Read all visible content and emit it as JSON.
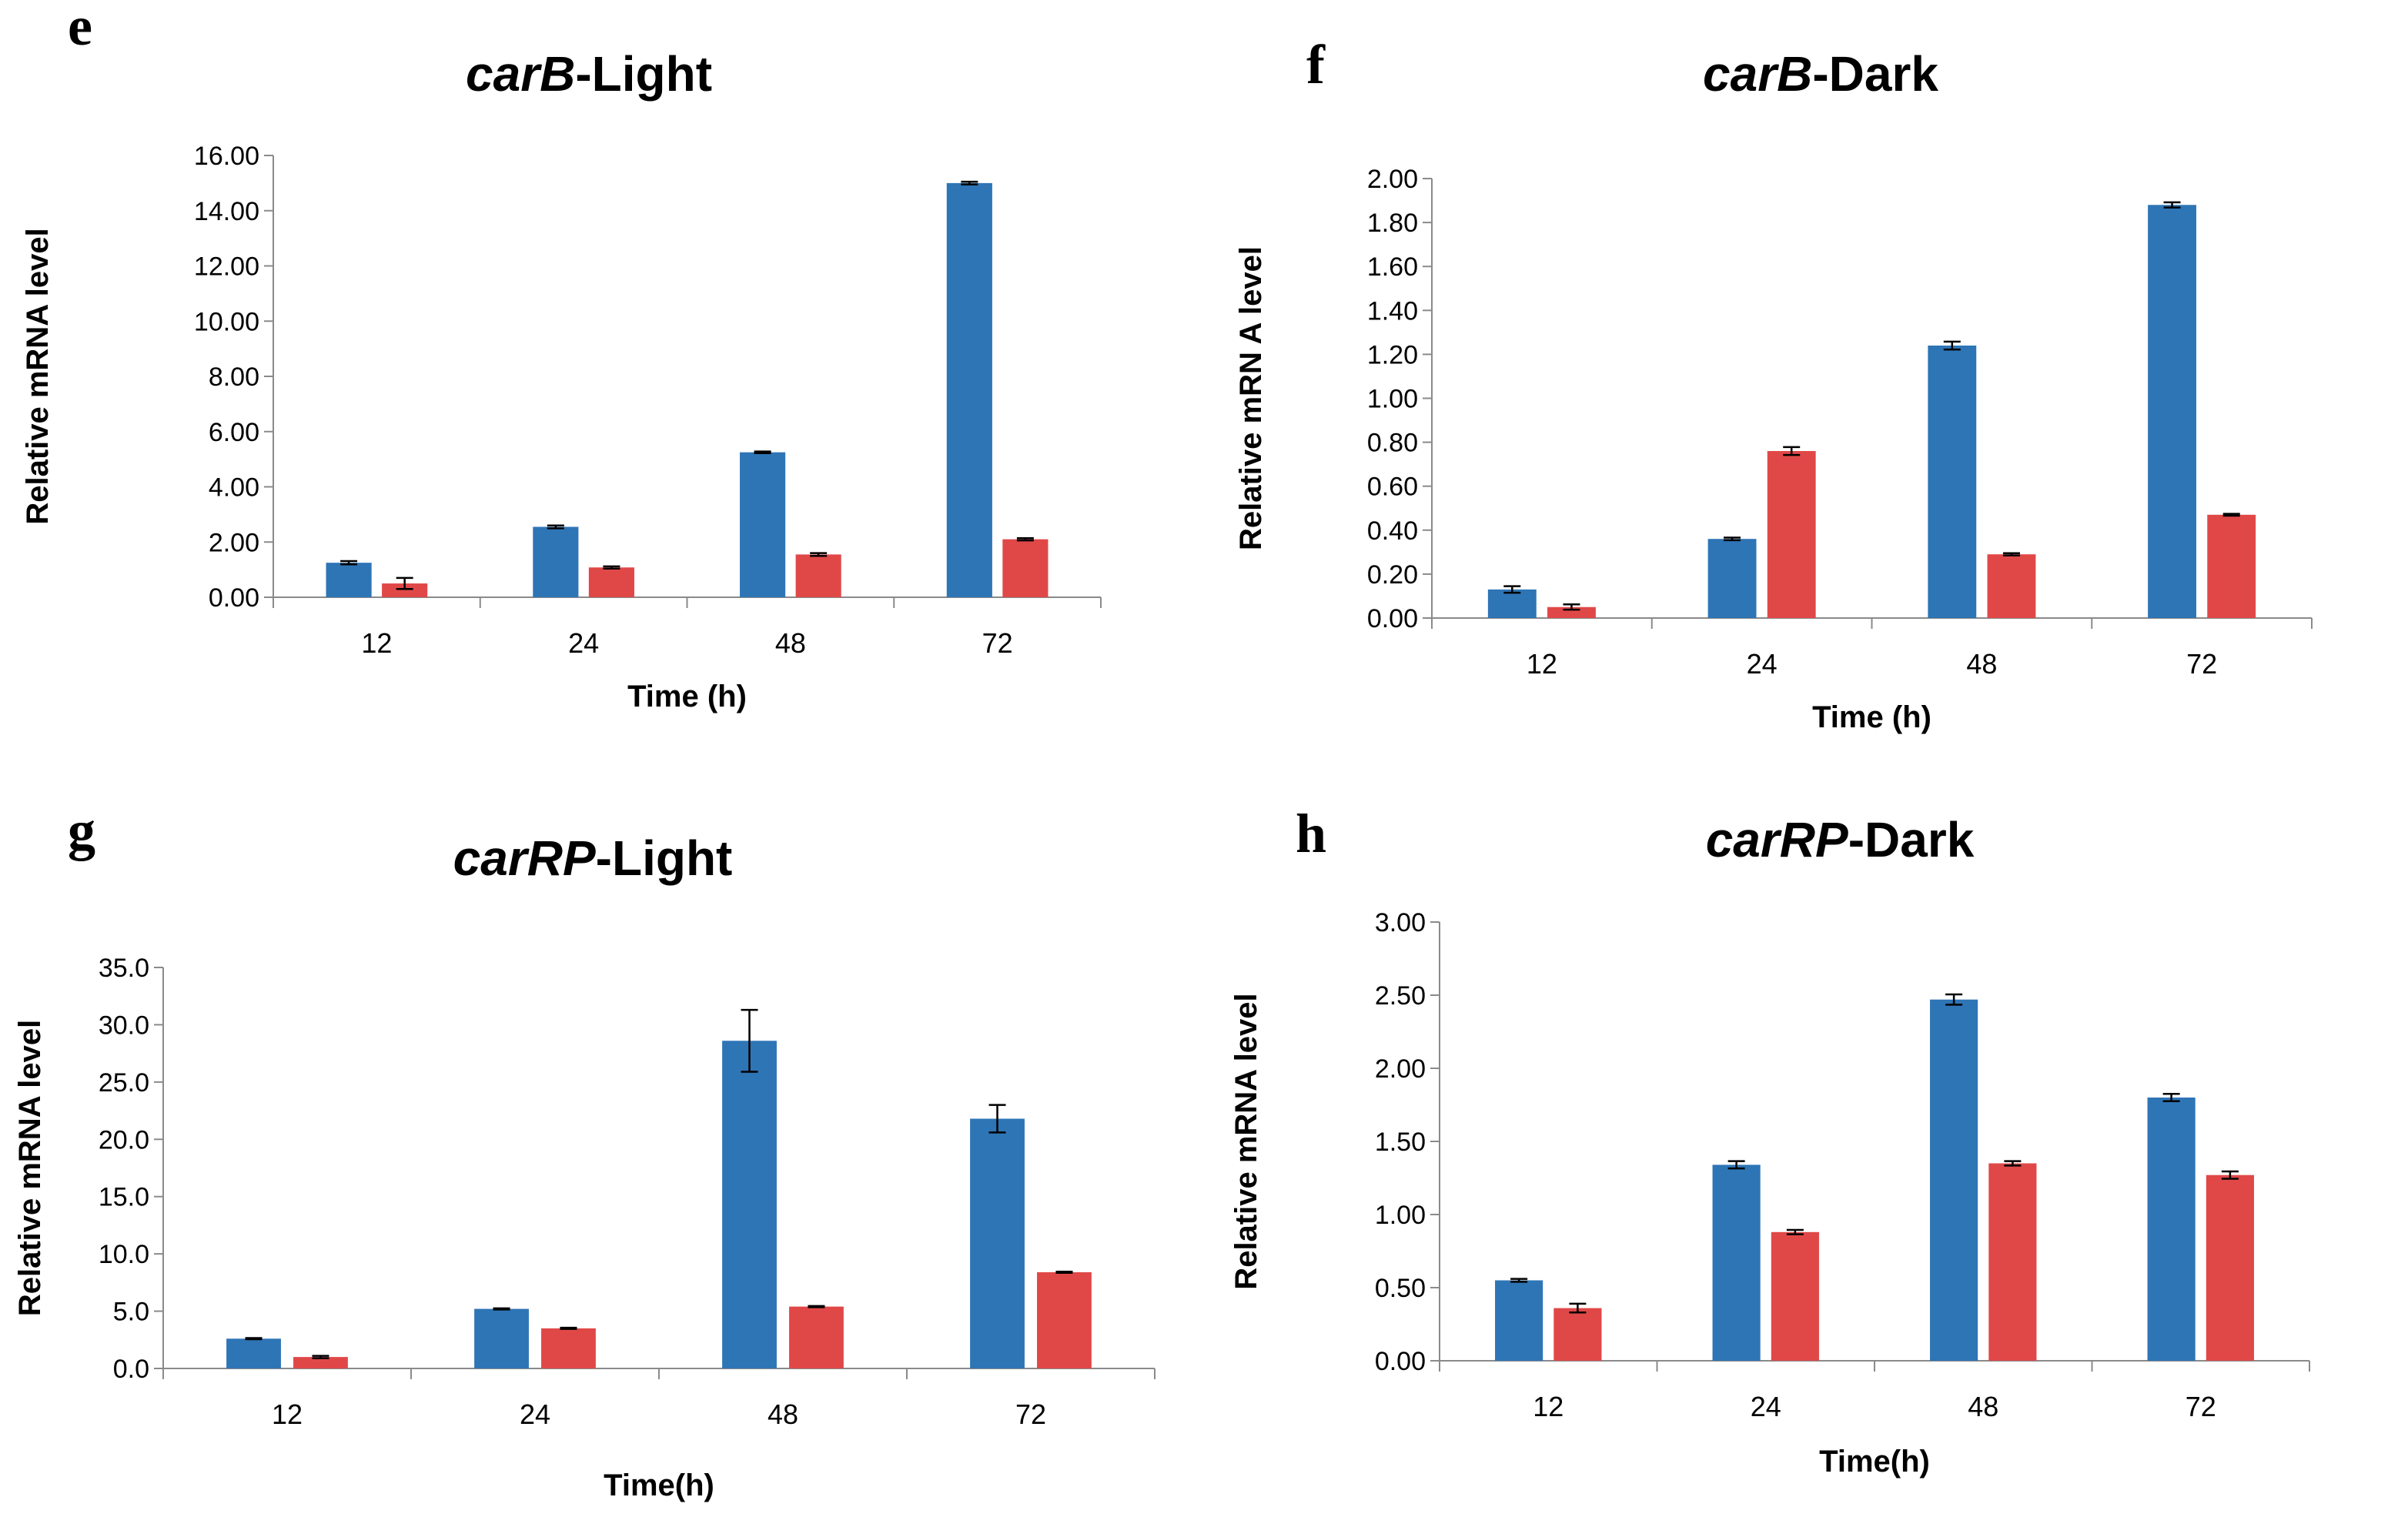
{
  "colors": {
    "series1": "#2E75B6",
    "series2": "#E04848"
  },
  "chart_data": [
    {
      "type": "bar",
      "panel": "e",
      "title_italic": "carB",
      "title_rest": "-Light",
      "xlabel": "Time (h)",
      "ylabel": "Relative mRNA level",
      "categories": [
        "12",
        "24",
        "48",
        "72"
      ],
      "ylim": [
        0,
        16
      ],
      "ytick_step": 2,
      "ytick_decimals": 2,
      "grid": false,
      "legend": "none",
      "series": [
        {
          "values": [
            1.25,
            2.55,
            5.25,
            15.0
          ],
          "errors": [
            0.06,
            0.05,
            0.03,
            0.05
          ]
        },
        {
          "values": [
            0.5,
            1.08,
            1.55,
            2.1
          ],
          "errors": [
            0.2,
            0.04,
            0.05,
            0.04
          ]
        }
      ]
    },
    {
      "type": "bar",
      "panel": "f",
      "title_italic": "carB",
      "title_rest": "-Dark",
      "xlabel": "Time (h)",
      "ylabel": "Relative mRN A level",
      "categories": [
        "12",
        "24",
        "48",
        "72"
      ],
      "ylim": [
        0,
        2
      ],
      "ytick_step": 0.2,
      "ytick_decimals": 2,
      "grid": false,
      "legend": "none",
      "series": [
        {
          "values": [
            0.13,
            0.36,
            1.24,
            1.88
          ],
          "errors": [
            0.015,
            0.006,
            0.018,
            0.012
          ]
        },
        {
          "values": [
            0.05,
            0.76,
            0.29,
            0.47
          ],
          "errors": [
            0.012,
            0.018,
            0.005,
            0.004
          ]
        }
      ]
    },
    {
      "type": "bar",
      "panel": "g",
      "title_italic": "carRP",
      "title_rest": "-Light",
      "xlabel": "Time(h)",
      "ylabel": "Relative mRNA level",
      "categories": [
        "12",
        "24",
        "48",
        "72"
      ],
      "ylim": [
        0,
        35
      ],
      "ytick_step": 5,
      "ytick_decimals": 1,
      "grid": false,
      "legend": "none",
      "series": [
        {
          "values": [
            2.6,
            5.2,
            28.6,
            21.8
          ],
          "errors": [
            0.05,
            0.05,
            2.7,
            1.2
          ]
        },
        {
          "values": [
            1.0,
            3.5,
            5.4,
            8.4
          ],
          "errors": [
            0.1,
            0.05,
            0.05,
            0.05
          ]
        }
      ]
    },
    {
      "type": "bar",
      "panel": "h",
      "title_italic": "carRP",
      "title_rest": "-Dark",
      "xlabel": "Time(h)",
      "ylabel": "Relative  mRNA level",
      "categories": [
        "12",
        "24",
        "48",
        "72"
      ],
      "ylim": [
        0,
        3
      ],
      "ytick_step": 0.5,
      "ytick_decimals": 2,
      "grid": false,
      "legend": "none",
      "series": [
        {
          "values": [
            0.55,
            1.34,
            2.47,
            1.8
          ],
          "errors": [
            0.01,
            0.025,
            0.035,
            0.025
          ]
        },
        {
          "values": [
            0.36,
            0.88,
            1.35,
            1.27
          ],
          "errors": [
            0.03,
            0.015,
            0.015,
            0.025
          ]
        }
      ]
    }
  ]
}
